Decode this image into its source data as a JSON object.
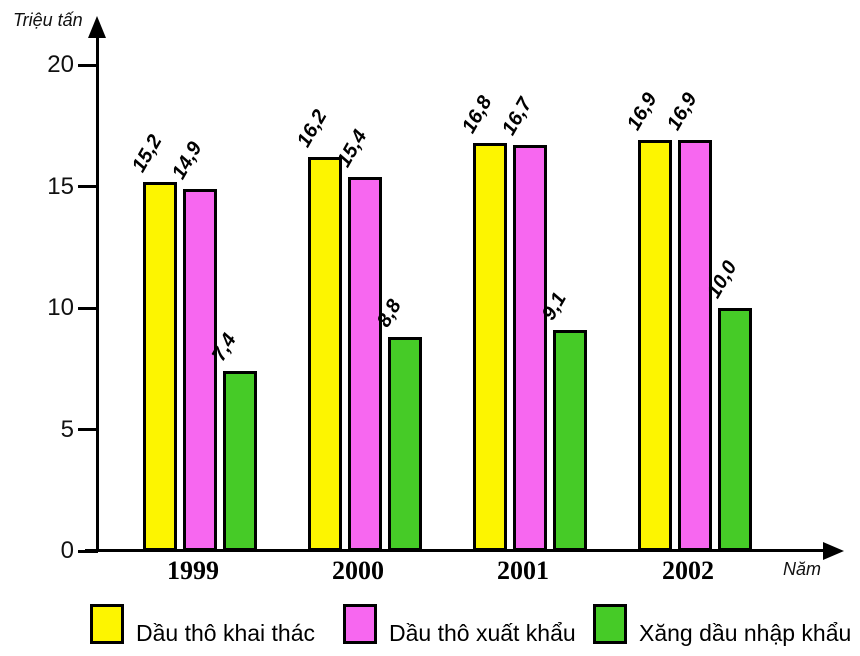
{
  "page": {
    "background": "#ffffff",
    "axis_color": "#000000"
  },
  "chart_data": {
    "type": "bar",
    "title": "",
    "ylabel": "Triệu tấn",
    "xlabel": "Năm",
    "categories": [
      "1999",
      "2000",
      "2001",
      "2002"
    ],
    "series": [
      {
        "name": "Dầu thô khai thác",
        "color": "#FDF500",
        "values": [
          15.2,
          16.2,
          16.8,
          16.9
        ],
        "value_labels": [
          "15,2",
          "16,2",
          "16,8",
          "16,9"
        ]
      },
      {
        "name": "Dầu thô xuất khẩu",
        "color": "#F767F0",
        "values": [
          14.9,
          15.4,
          16.7,
          16.9
        ],
        "value_labels": [
          "14,9",
          "15,4",
          "16,7",
          "16,9"
        ]
      },
      {
        "name": "Xăng dầu nhập khẩu",
        "color": "#46CB27",
        "values": [
          7.4,
          8.8,
          9.1,
          10.0
        ],
        "value_labels": [
          "7,4",
          "8,8",
          "9,1",
          "10,0"
        ]
      }
    ],
    "y_ticks": [
      0,
      5,
      10,
      15,
      20
    ],
    "ylim": [
      0,
      21.3
    ],
    "grid": false,
    "legend_position": "bottom",
    "bar_border_color": "#000000",
    "decimal_separator": ","
  }
}
